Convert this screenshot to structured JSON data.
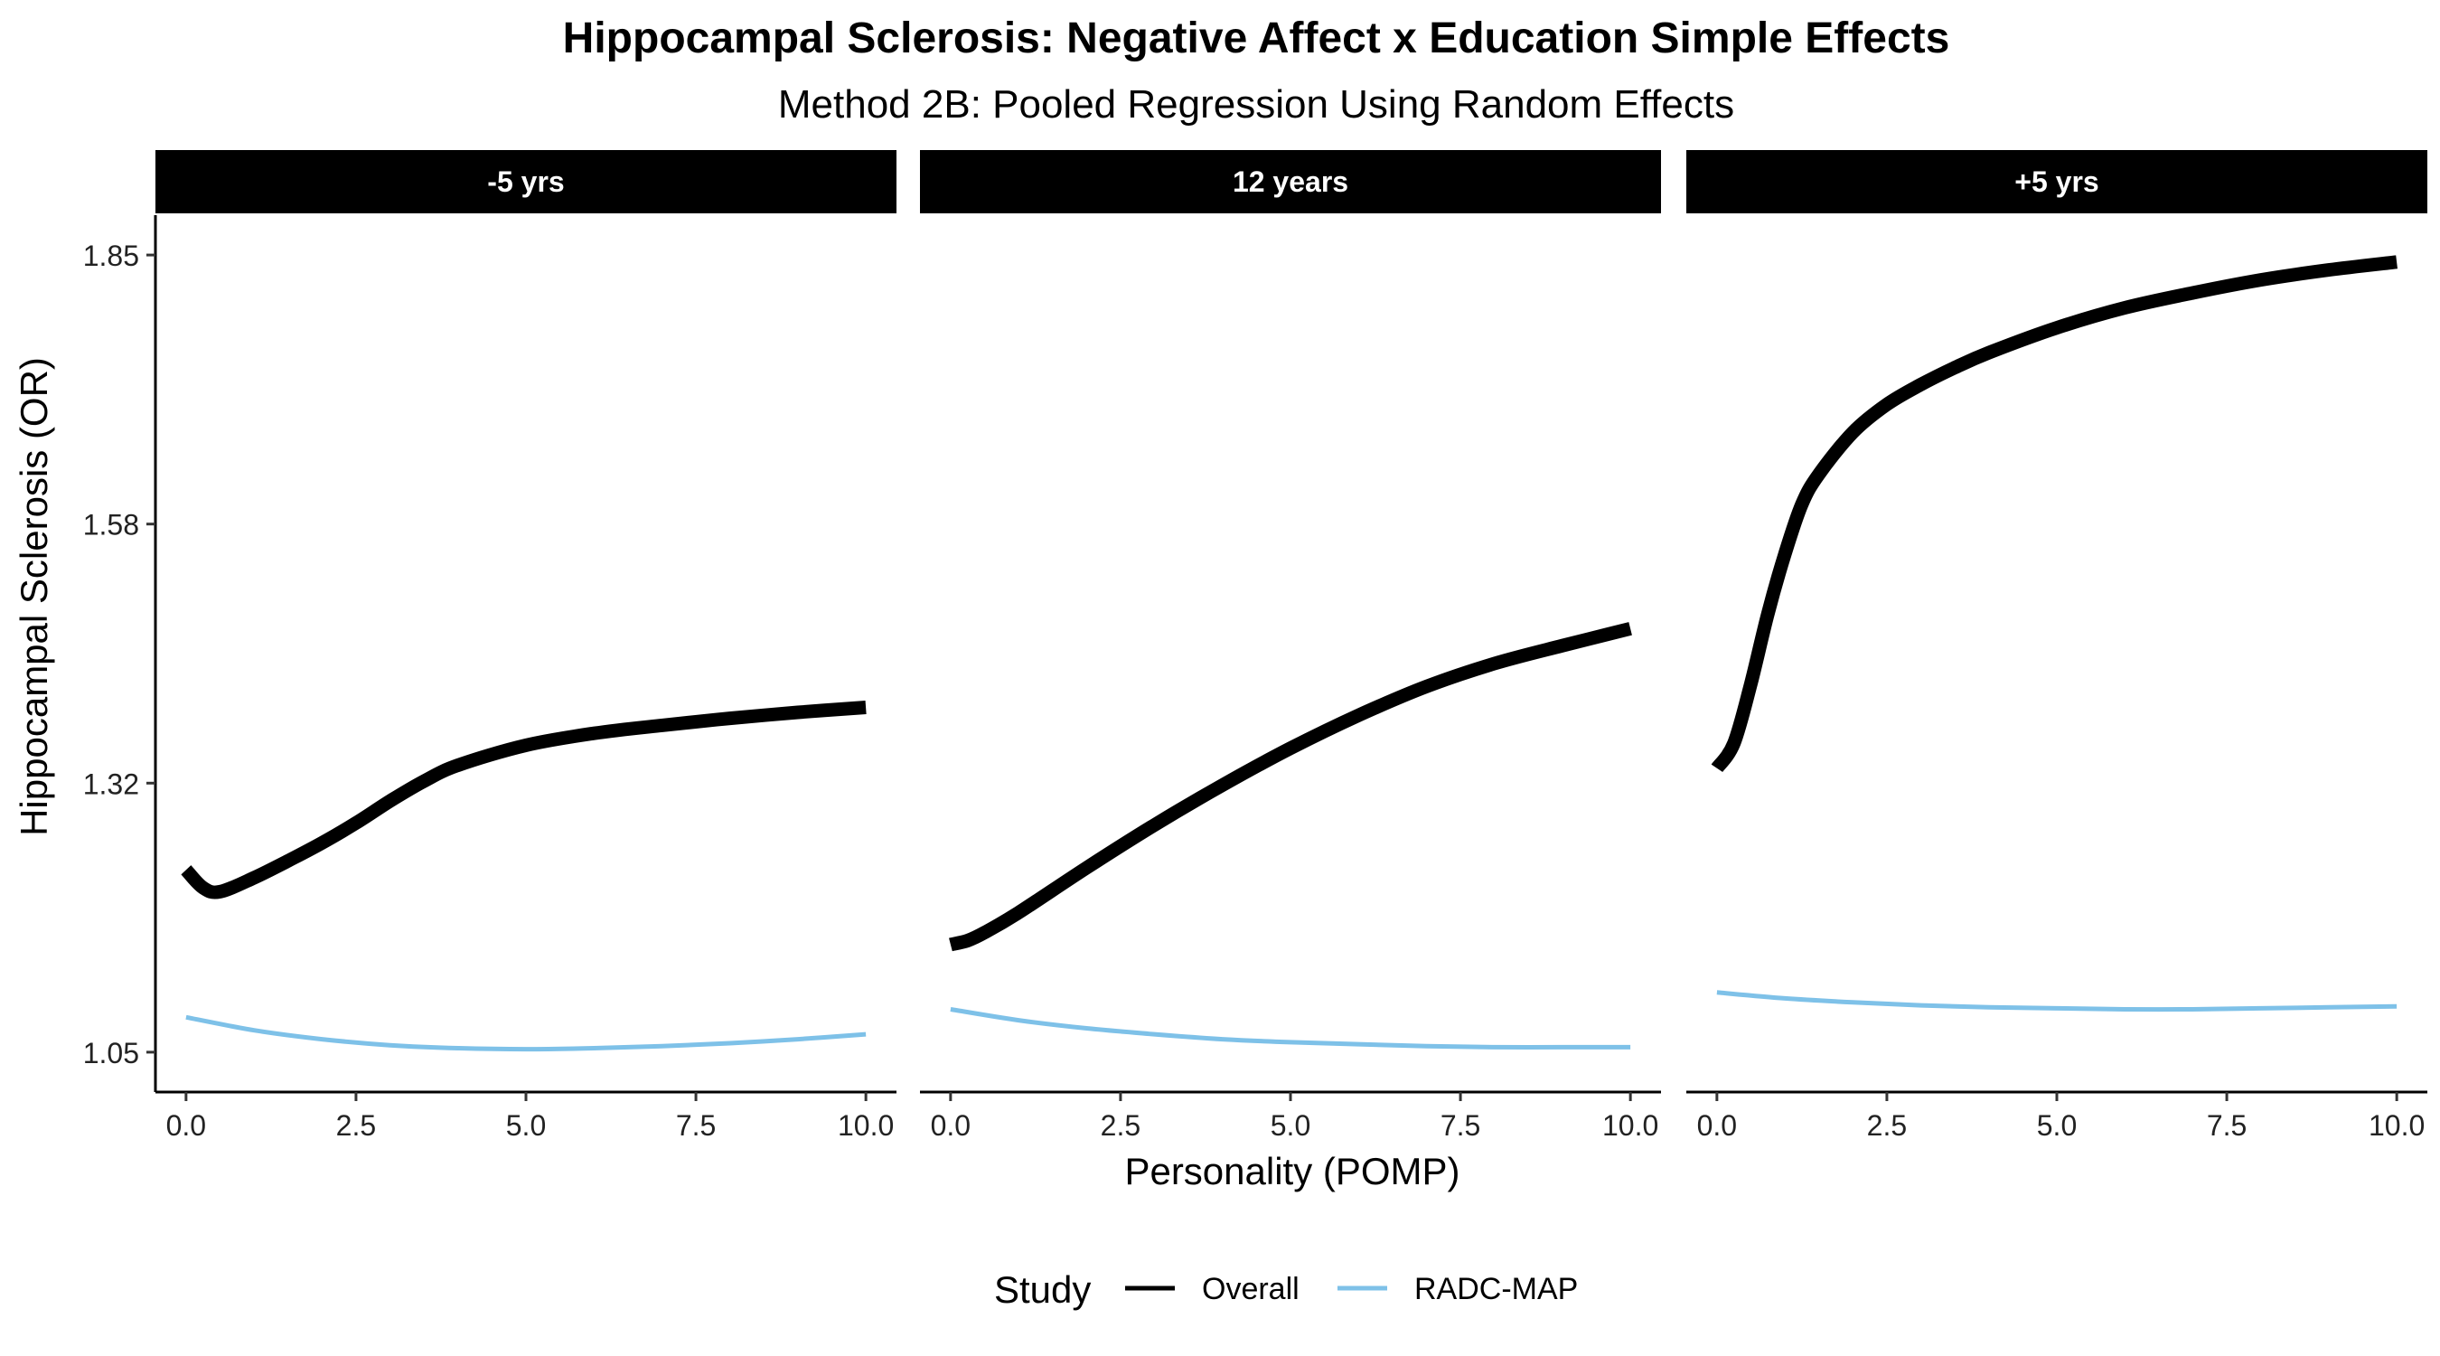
{
  "chart_data": {
    "type": "line",
    "title": "Hippocampal Sclerosis: Negative Affect x Education Simple Effects",
    "subtitle": "Method 2B: Pooled Regression Using Random Effects",
    "xlabel": "Personality (POMP)",
    "ylabel": "Hippocampal Sclerosis (OR)",
    "xlim": [
      -0.45,
      10.45
    ],
    "ylim": [
      1.01,
      1.89
    ],
    "x_ticks": [
      0,
      2.5,
      5,
      7.5,
      10
    ],
    "x_tick_labels": [
      "0.0",
      "2.5",
      "5.0",
      "7.5",
      "10.0"
    ],
    "y_ticks": [
      1.05,
      1.32,
      1.58,
      1.85
    ],
    "y_tick_labels": [
      "1.05",
      "1.32",
      "1.58",
      "1.85"
    ],
    "grid": false,
    "legend": {
      "title": "Study",
      "placement": "bottom",
      "entries": [
        {
          "label": "Overall",
          "color": "#000000"
        },
        {
          "label": "RADC-MAP",
          "color": "#7EC1E8"
        }
      ]
    },
    "panels": [
      {
        "strip": "-5 yrs",
        "series": [
          {
            "name": "Overall",
            "color": "#000000",
            "x": [
              0,
              0.25,
              0.5,
              1,
              1.5,
              2,
              2.5,
              3,
              3.5,
              4,
              5,
              6,
              7,
              8,
              9,
              10
            ],
            "y": [
              1.233,
              1.215,
              1.211,
              1.225,
              1.242,
              1.26,
              1.28,
              1.302,
              1.322,
              1.338,
              1.358,
              1.37,
              1.378,
              1.385,
              1.391,
              1.396
            ]
          },
          {
            "name": "RADC-MAP",
            "color": "#7EC1E8",
            "x": [
              0,
              1,
              2,
              3,
              4,
              5,
              6,
              7,
              8,
              9,
              10
            ],
            "y": [
              1.085,
              1.072,
              1.063,
              1.057,
              1.054,
              1.053,
              1.054,
              1.056,
              1.059,
              1.063,
              1.068
            ]
          }
        ]
      },
      {
        "strip": "12 years",
        "series": [
          {
            "name": "Overall",
            "color": "#000000",
            "x": [
              0,
              0.25,
              0.5,
              1,
              2,
              3,
              4,
              5,
              6,
              7,
              8,
              9,
              10
            ],
            "y": [
              1.158,
              1.162,
              1.17,
              1.19,
              1.235,
              1.278,
              1.318,
              1.355,
              1.388,
              1.417,
              1.44,
              1.458,
              1.475
            ]
          },
          {
            "name": "RADC-MAP",
            "color": "#7EC1E8",
            "x": [
              0,
              1,
              2,
              3,
              4,
              5,
              6,
              7,
              8,
              9,
              10
            ],
            "y": [
              1.093,
              1.082,
              1.074,
              1.068,
              1.063,
              1.06,
              1.058,
              1.056,
              1.055,
              1.055,
              1.055
            ]
          }
        ]
      },
      {
        "strip": "+5 yrs",
        "series": [
          {
            "name": "Overall",
            "color": "#000000",
            "x": [
              0,
              0.25,
              0.5,
              0.75,
              1,
              1.25,
              1.5,
              2,
              2.5,
              3,
              3.5,
              4,
              5,
              6,
              7,
              8,
              9,
              10
            ],
            "y": [
              1.335,
              1.36,
              1.42,
              1.49,
              1.55,
              1.6,
              1.63,
              1.672,
              1.7,
              1.72,
              1.737,
              1.752,
              1.777,
              1.797,
              1.812,
              1.825,
              1.835,
              1.843
            ]
          },
          {
            "name": "RADC-MAP",
            "color": "#7EC1E8",
            "x": [
              0,
              1,
              2,
              3,
              4,
              5,
              6,
              7,
              8,
              9,
              10
            ],
            "y": [
              1.11,
              1.104,
              1.1,
              1.097,
              1.095,
              1.094,
              1.093,
              1.093,
              1.094,
              1.095,
              1.096
            ]
          }
        ]
      }
    ]
  }
}
